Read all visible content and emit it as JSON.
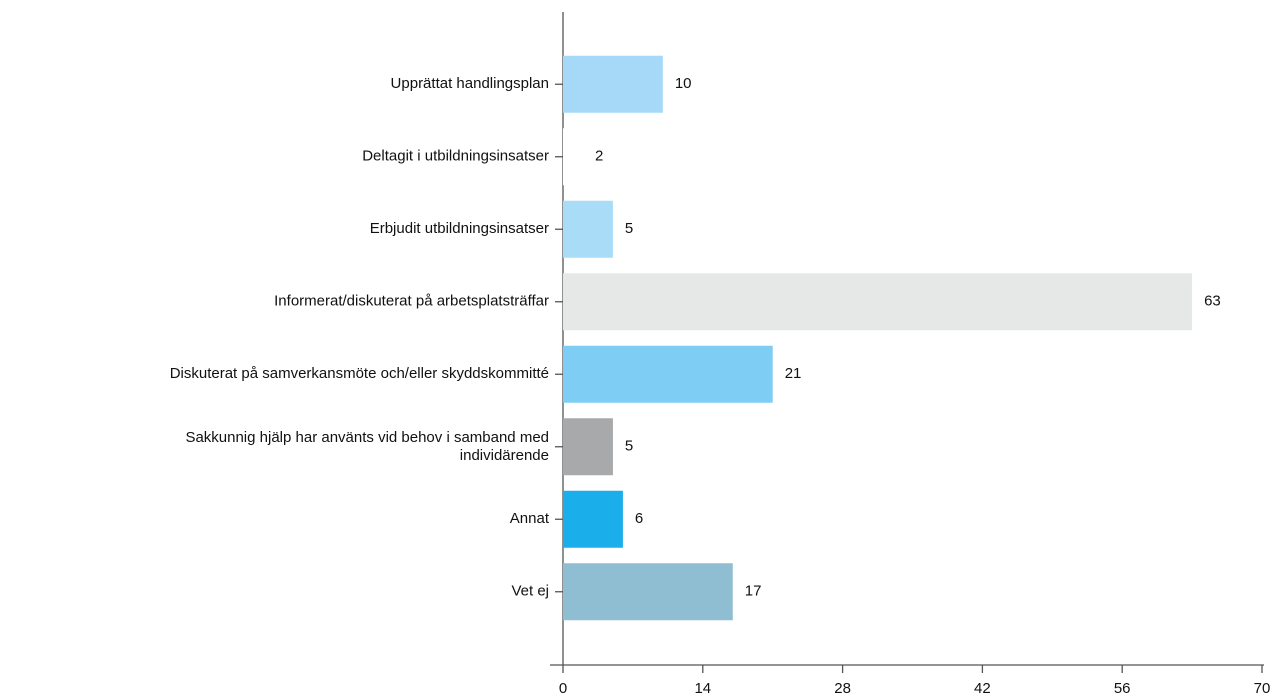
{
  "chart_data": {
    "type": "hbar",
    "categories": [
      "Upprättat handlingsplan",
      "Deltagit i utbildningsinsatser",
      "Erbjudit utbildningsinsatser",
      "Informerat/diskuterat på arbetsplatsträffar",
      "Diskuterat på samverkansmöte och/eller skyddskommitté",
      "Sakkunnig hjälp har använts vid behov i samband med\nindividärende",
      "Annat",
      "Vet ej"
    ],
    "values": [
      10,
      2,
      5,
      63,
      21,
      5,
      6,
      17
    ],
    "colors": [
      "#a6d8f8",
      "#ffffff",
      "#a8dcf7",
      "#e6e8e8",
      "#7dcdf5",
      "#a7a9ab",
      "#1aaeea",
      "#8fbdd2"
    ],
    "xlim": [
      0,
      70
    ],
    "xticks": [
      0,
      14,
      28,
      42,
      56,
      70
    ]
  }
}
